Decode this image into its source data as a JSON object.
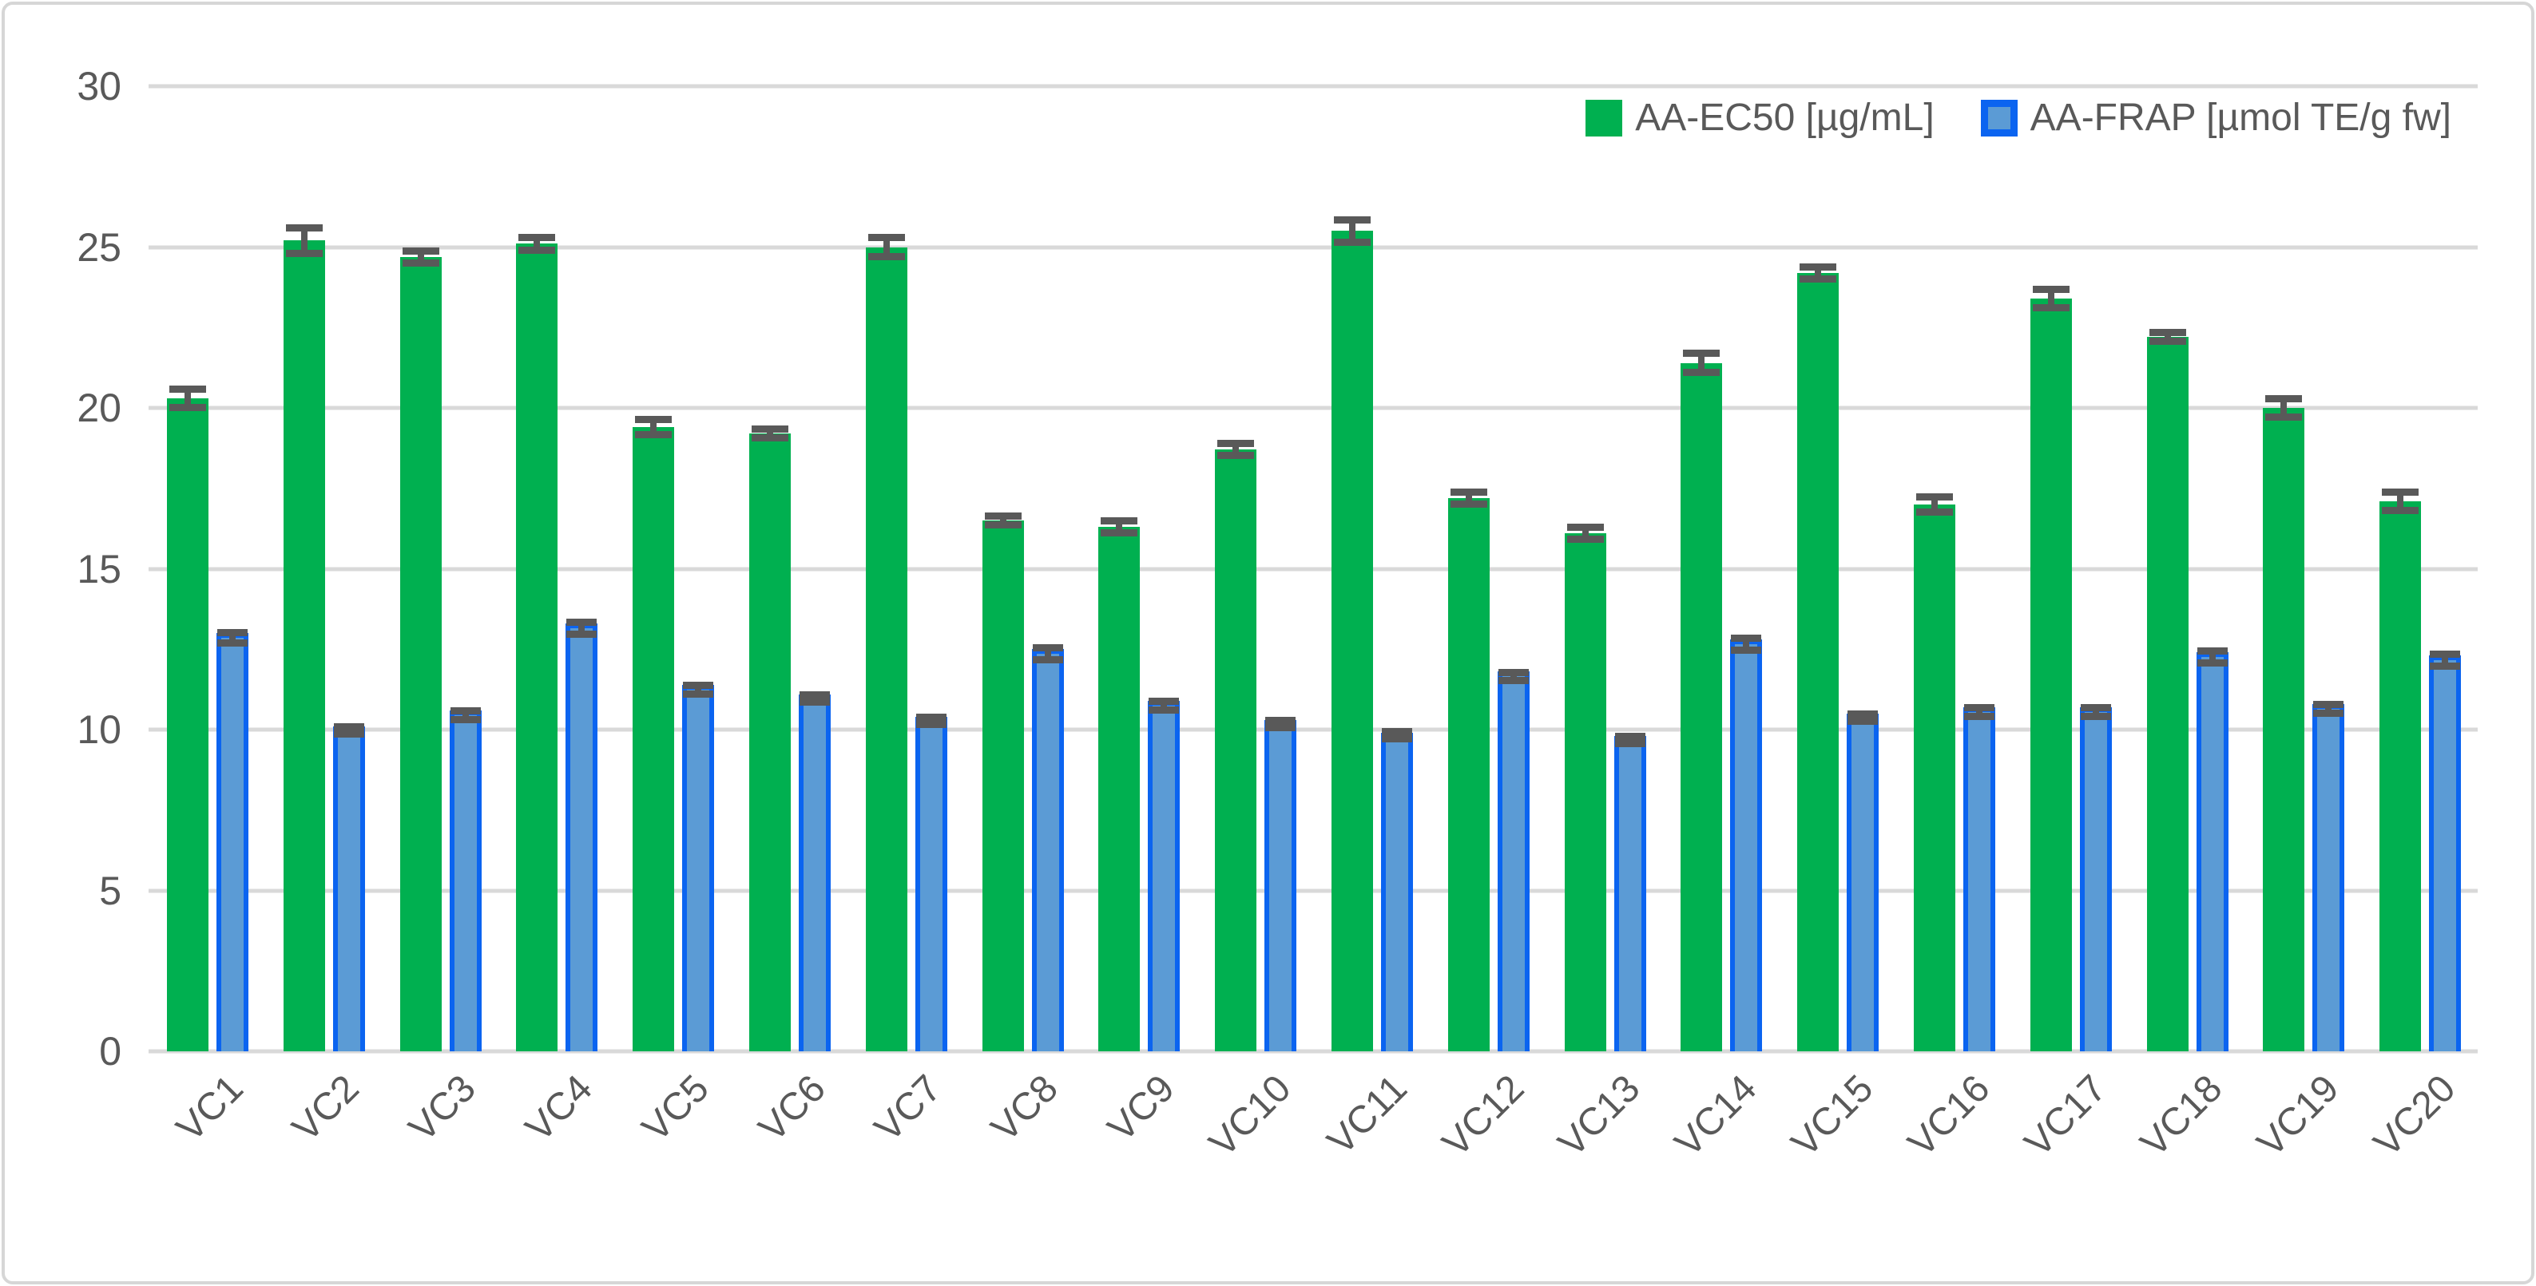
{
  "chart_data": {
    "type": "bar",
    "title": "",
    "xlabel": "",
    "ylabel": "",
    "categories": [
      "VC1",
      "VC2",
      "VC3",
      "VC4",
      "VC5",
      "VC6",
      "VC7",
      "VC8",
      "VC9",
      "VC10",
      "VC11",
      "VC12",
      "VC13",
      "VC14",
      "VC15",
      "VC16",
      "VC17",
      "VC18",
      "VC19",
      "VC20"
    ],
    "series": [
      {
        "name": "AA-EC50 [µg/mL]",
        "color": "#00b050",
        "values": [
          20.3,
          25.2,
          24.7,
          25.1,
          19.4,
          19.2,
          25.0,
          16.5,
          16.3,
          18.7,
          25.5,
          17.2,
          16.1,
          21.4,
          24.2,
          17.0,
          23.4,
          22.2,
          20.0,
          17.1
        ],
        "errors": [
          0.4,
          0.5,
          0.3,
          0.3,
          0.35,
          0.25,
          0.4,
          0.25,
          0.3,
          0.3,
          0.45,
          0.3,
          0.3,
          0.4,
          0.3,
          0.35,
          0.4,
          0.25,
          0.4,
          0.4
        ]
      },
      {
        "name": "AA-FRAP [µmol TE/g fw]",
        "color_fill": "#5b9bd5",
        "color_border": "#0b64f0",
        "values": [
          13.0,
          10.1,
          10.6,
          13.3,
          11.4,
          11.1,
          10.4,
          12.5,
          10.9,
          10.3,
          9.9,
          11.8,
          9.8,
          12.8,
          10.5,
          10.7,
          10.7,
          12.4,
          10.8,
          12.3
        ],
        "errors": [
          0.28,
          0.2,
          0.25,
          0.3,
          0.25,
          0.2,
          0.2,
          0.3,
          0.25,
          0.2,
          0.15,
          0.25,
          0.2,
          0.3,
          0.2,
          0.25,
          0.25,
          0.3,
          0.25,
          0.3
        ]
      }
    ],
    "ylim": [
      0,
      30
    ],
    "yticks": [
      0,
      5,
      10,
      15,
      20,
      25,
      30
    ],
    "grid": true,
    "legend_position": "top-right",
    "error_bar_color": "#595959",
    "gridline_color": "#d9d9d9",
    "tick_label_color": "#595959"
  }
}
